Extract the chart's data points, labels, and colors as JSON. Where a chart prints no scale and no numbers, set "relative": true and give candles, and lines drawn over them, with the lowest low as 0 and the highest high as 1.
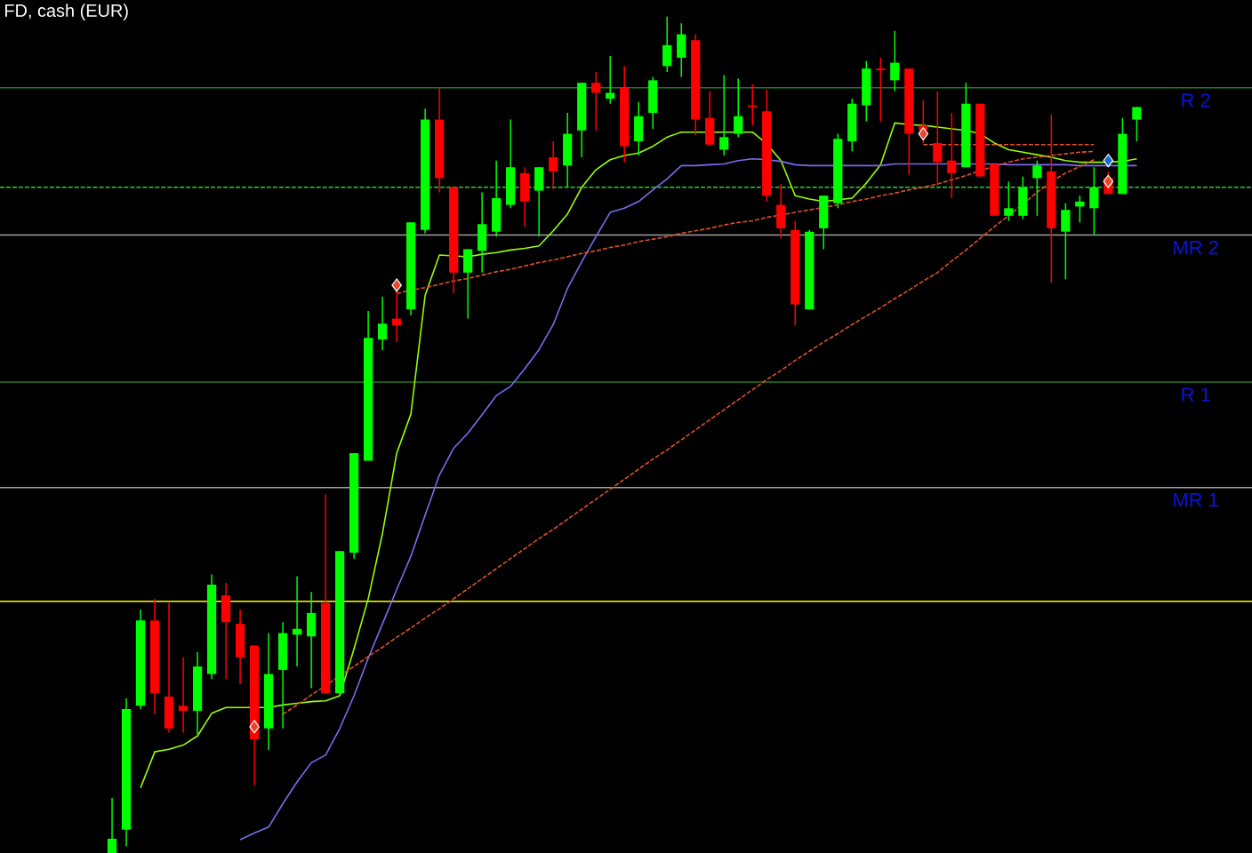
{
  "chart_data": {
    "type": "candlestick",
    "title": "FD, cash (EUR)",
    "relative": true,
    "tick_labels": false,
    "categories": [
      null,
      null,
      null,
      null,
      null,
      null,
      null,
      null,
      null,
      null,
      null,
      null,
      null,
      null,
      null,
      null,
      null,
      null,
      null,
      null,
      null,
      null,
      null,
      null,
      null,
      null,
      null,
      null,
      null,
      null,
      null,
      null,
      null,
      null,
      null,
      null,
      null,
      null,
      null,
      null,
      null,
      null,
      null,
      null,
      null,
      null,
      null,
      null,
      null,
      null,
      null,
      null,
      null,
      null,
      null,
      null,
      null,
      null,
      null,
      null,
      null,
      null,
      null,
      null,
      null,
      null,
      null,
      null,
      null,
      null,
      null,
      null,
      null
    ],
    "ohlc": [
      [
        0,
        0.066,
        0,
        0.017
      ],
      [
        0.028,
        0.185,
        0.008,
        0.172
      ],
      [
        0.176,
        0.291,
        0.172,
        0.278
      ],
      [
        0.278,
        0.304,
        0.166,
        0.191
      ],
      [
        0.187,
        0.299,
        0.144,
        0.149
      ],
      [
        0.176,
        0.234,
        0.144,
        0.17
      ],
      [
        0.17,
        0.24,
        0.142,
        0.223
      ],
      [
        0.214,
        0.333,
        0.208,
        0.321
      ],
      [
        0.308,
        0.323,
        0.208,
        0.276
      ],
      [
        0.274,
        0.291,
        0.202,
        0.234
      ],
      [
        0.248,
        0.248,
        0.081,
        0.136
      ],
      [
        0.149,
        0.263,
        0.123,
        0.214
      ],
      [
        0.219,
        0.276,
        0.149,
        0.263
      ],
      [
        0.261,
        0.331,
        0.223,
        0.268
      ],
      [
        0.259,
        0.312,
        0.197,
        0.287
      ],
      [
        0.299,
        0.429,
        0.191,
        0.191
      ],
      [
        0.191,
        0.361,
        0.191,
        0.361
      ],
      [
        0.359,
        0.478,
        0.352,
        0.478
      ],
      [
        0.469,
        0.648,
        0.469,
        0.616
      ],
      [
        0.614,
        0.665,
        0.601,
        0.633
      ],
      [
        0.639,
        0.673,
        0.611,
        0.631
      ],
      [
        0.65,
        0.754,
        0.643,
        0.754
      ],
      [
        0.745,
        0.89,
        0.741,
        0.877
      ],
      [
        0.877,
        0.915,
        0.79,
        0.807
      ],
      [
        0.796,
        0.796,
        0.669,
        0.694
      ],
      [
        0.694,
        0.722,
        0.639,
        0.722
      ],
      [
        0.72,
        0.79,
        0.694,
        0.752
      ],
      [
        0.743,
        0.828,
        0.737,
        0.783
      ],
      [
        0.775,
        0.877,
        0.771,
        0.82
      ],
      [
        0.813,
        0.82,
        0.749,
        0.779
      ],
      [
        0.792,
        0.82,
        0.737,
        0.82
      ],
      [
        0.832,
        0.851,
        0.794,
        0.815
      ],
      [
        0.822,
        0.885,
        0.796,
        0.86
      ],
      [
        0.864,
        0.921,
        0.832,
        0.921
      ],
      [
        0.921,
        0.934,
        0.864,
        0.909
      ],
      [
        0.902,
        0.953,
        0.896,
        0.909
      ],
      [
        0.915,
        0.941,
        0.826,
        0.845
      ],
      [
        0.851,
        0.898,
        0.834,
        0.881
      ],
      [
        0.885,
        0.928,
        0.866,
        0.924
      ],
      [
        0.941,
        1.0,
        0.934,
        0.966
      ],
      [
        0.951,
        0.992,
        0.928,
        0.979
      ],
      [
        0.972,
        0.979,
        0.858,
        0.877
      ],
      [
        0.879,
        0.911,
        0.847,
        0.847
      ],
      [
        0.841,
        0.93,
        0.834,
        0.856
      ],
      [
        0.86,
        0.926,
        0.856,
        0.881
      ],
      [
        0.894,
        0.919,
        0.87,
        0.892
      ],
      [
        0.887,
        0.913,
        0.779,
        0.786
      ],
      [
        0.775,
        0.8,
        0.735,
        0.747
      ],
      [
        0.745,
        0.756,
        0.631,
        0.656
      ],
      [
        0.65,
        0.745,
        0.65,
        0.743
      ],
      [
        0.747,
        0.786,
        0.722,
        0.786
      ],
      [
        0.777,
        0.86,
        0.771,
        0.854
      ],
      [
        0.851,
        0.902,
        0.839,
        0.896
      ],
      [
        0.894,
        0.947,
        0.875,
        0.938
      ],
      [
        0.938,
        0.951,
        0.875,
        0.936
      ],
      [
        0.924,
        0.983,
        0.911,
        0.945
      ],
      [
        0.938,
        0.938,
        0.811,
        0.86
      ],
      [
        0.87,
        0.9,
        0.849,
        0.864
      ],
      [
        0.849,
        0.911,
        0.798,
        0.826
      ],
      [
        0.828,
        0.885,
        0.783,
        0.813
      ],
      [
        0.82,
        0.921,
        0.82,
        0.896
      ],
      [
        0.896,
        0.896,
        0.809,
        0.809
      ],
      [
        0.824,
        0.824,
        0.762,
        0.762
      ],
      [
        0.762,
        0.803,
        0.756,
        0.771
      ],
      [
        0.762,
        0.809,
        0.758,
        0.796
      ],
      [
        0.807,
        0.828,
        0.762,
        0.822
      ],
      [
        0.815,
        0.883,
        0.682,
        0.747
      ],
      [
        0.743,
        0.777,
        0.686,
        0.769
      ],
      [
        0.773,
        0.786,
        0.754,
        0.779
      ],
      [
        0.771,
        0.82,
        0.739,
        0.796
      ],
      [
        0.807,
        0.815,
        0.788,
        0.788
      ],
      [
        0.788,
        0.879,
        0.788,
        0.86
      ],
      [
        0.877,
        0.892,
        0.851,
        0.892
      ]
    ],
    "series": [
      {
        "type": "line",
        "color": "#99ff00",
        "marker": "none",
        "line_style": "solid",
        "values": [
          null,
          null,
          0.078,
          0.121,
          0.124,
          0.129,
          0.14,
          0.167,
          0.174,
          0.174,
          0.174,
          0.174,
          0.177,
          0.179,
          0.181,
          0.182,
          0.188,
          0.244,
          0.304,
          0.382,
          0.478,
          0.525,
          0.667,
          0.715,
          0.714,
          0.713,
          0.716,
          0.718,
          0.721,
          0.723,
          0.726,
          0.744,
          0.764,
          0.796,
          0.817,
          0.829,
          0.834,
          0.837,
          0.845,
          0.856,
          0.862,
          0.862,
          0.862,
          0.862,
          0.862,
          0.862,
          0.848,
          0.828,
          0.786,
          0.782,
          0.779,
          0.781,
          0.783,
          0.801,
          0.823,
          0.873,
          0.871,
          0.87,
          0.868,
          0.866,
          0.864,
          0.86,
          0.849,
          0.841,
          0.838,
          0.835,
          0.832,
          0.828,
          0.826,
          0.826,
          0.826,
          0.827,
          0.83
        ]
      },
      {
        "type": "line",
        "color": "#7b6cf0",
        "marker": "none",
        "line_style": "solid",
        "values": [
          null,
          null,
          null,
          null,
          null,
          null,
          null,
          null,
          null,
          0.016,
          0.024,
          0.031,
          0.059,
          0.085,
          0.108,
          0.117,
          0.149,
          0.188,
          0.233,
          0.274,
          0.315,
          0.355,
          0.404,
          0.452,
          0.484,
          0.502,
          0.524,
          0.547,
          0.558,
          0.579,
          0.602,
          0.632,
          0.675,
          0.707,
          0.737,
          0.766,
          0.771,
          0.779,
          0.793,
          0.806,
          0.822,
          0.822,
          0.823,
          0.824,
          0.828,
          0.83,
          0.829,
          0.827,
          0.823,
          0.822,
          0.822,
          0.822,
          0.822,
          0.822,
          0.822,
          0.824,
          0.824,
          0.824,
          0.824,
          0.824,
          0.824,
          0.824,
          0.824,
          0.823,
          0.823,
          0.823,
          0.823,
          0.823,
          0.822,
          0.822,
          0.822,
          0.822,
          0.822
        ]
      },
      {
        "type": "line",
        "color": "#e0502a",
        "marker": "none",
        "line_style": "dashed",
        "values": [
          null,
          null,
          null,
          null,
          null,
          null,
          null,
          null,
          null,
          null,
          null,
          null,
          0.166,
          0.177,
          0.189,
          0.2,
          0.212,
          0.223,
          0.235,
          0.246,
          0.258,
          0.269,
          0.281,
          0.292,
          0.304,
          0.316,
          0.328,
          0.34,
          0.352,
          0.364,
          0.376,
          0.387,
          0.399,
          0.411,
          0.423,
          0.435,
          0.447,
          0.459,
          0.471,
          0.482,
          0.494,
          0.506,
          0.518,
          0.53,
          0.542,
          0.554,
          0.566,
          0.577,
          0.589,
          0.6,
          0.611,
          0.621,
          0.632,
          0.642,
          0.652,
          0.663,
          0.673,
          0.684,
          0.694,
          0.708,
          0.721,
          0.735,
          0.749,
          0.762,
          0.776,
          0.79,
          0.803,
          0.813,
          0.821,
          0.829,
          null,
          null,
          null
        ]
      },
      {
        "type": "line",
        "color": "#e0502a",
        "marker": "none",
        "line_style": "dashed",
        "values": [
          null,
          null,
          null,
          null,
          null,
          null,
          null,
          null,
          null,
          null,
          null,
          null,
          null,
          null,
          null,
          null,
          null,
          null,
          null,
          null,
          0.669,
          0.673,
          0.676,
          0.68,
          0.684,
          0.687,
          0.691,
          0.695,
          0.698,
          0.702,
          0.706,
          0.709,
          0.713,
          0.717,
          0.72,
          0.724,
          0.727,
          0.731,
          0.734,
          0.737,
          0.741,
          0.744,
          0.747,
          0.751,
          0.754,
          0.756,
          0.76,
          0.763,
          0.766,
          0.769,
          0.772,
          0.775,
          0.779,
          0.782,
          0.786,
          0.789,
          0.793,
          0.796,
          0.8,
          0.805,
          0.81,
          0.816,
          0.821,
          0.826,
          0.83,
          0.832,
          0.834,
          0.836,
          0.838,
          0.839,
          null,
          null,
          null
        ]
      },
      {
        "type": "line",
        "color": "#e0502a",
        "marker": "none",
        "line_style": "dashed",
        "values": [
          null,
          null,
          null,
          null,
          null,
          null,
          null,
          null,
          null,
          null,
          null,
          null,
          null,
          null,
          null,
          null,
          null,
          null,
          null,
          null,
          null,
          null,
          null,
          null,
          null,
          null,
          null,
          null,
          null,
          null,
          null,
          null,
          null,
          null,
          null,
          null,
          null,
          null,
          null,
          null,
          null,
          null,
          null,
          null,
          null,
          null,
          null,
          null,
          null,
          null,
          null,
          null,
          null,
          null,
          null,
          null,
          null,
          0.847,
          0.847,
          0.847,
          0.847,
          0.847,
          0.847,
          0.847,
          0.847,
          0.847,
          0.847,
          0.847,
          0.847,
          0.847,
          null,
          null,
          null
        ]
      },
      {
        "type": "scatter",
        "color": "#e8452a",
        "marker": "diamond",
        "values": [
          null,
          null,
          null,
          null,
          null,
          null,
          null,
          null,
          null,
          null,
          0.151,
          null,
          null,
          null,
          null,
          null,
          null,
          null,
          null,
          null,
          0.679,
          null,
          null,
          null,
          null,
          null,
          null,
          null,
          null,
          null,
          null,
          null,
          null,
          null,
          null,
          null,
          null,
          null,
          null,
          null,
          null,
          null,
          null,
          null,
          null,
          null,
          null,
          null,
          null,
          null,
          null,
          null,
          null,
          null,
          null,
          null,
          null,
          0.86,
          null,
          null,
          null,
          null,
          null,
          null,
          null,
          null,
          null,
          null,
          null,
          null,
          0.803,
          null,
          null
        ]
      },
      {
        "type": "scatter",
        "color": "#1a6ad0",
        "marker": "diamond",
        "values": [
          null,
          null,
          null,
          null,
          null,
          null,
          null,
          null,
          null,
          null,
          null,
          null,
          null,
          null,
          null,
          null,
          null,
          null,
          null,
          null,
          null,
          null,
          null,
          null,
          null,
          null,
          null,
          null,
          null,
          null,
          null,
          null,
          null,
          null,
          null,
          null,
          null,
          null,
          null,
          null,
          null,
          null,
          null,
          null,
          null,
          null,
          null,
          null,
          null,
          null,
          null,
          null,
          null,
          null,
          null,
          null,
          null,
          null,
          null,
          null,
          null,
          null,
          null,
          null,
          null,
          null,
          null,
          null,
          null,
          null,
          0.828,
          null,
          null
        ]
      }
    ],
    "ref_lines": [
      {
        "axis": "y",
        "value": 0.915,
        "label": "R 2",
        "color": "#1f7a1f",
        "line_style": "solid"
      },
      {
        "axis": "y",
        "value": 0.796,
        "color": "#33cc33",
        "line_style": "dashed"
      },
      {
        "axis": "y",
        "value": 0.739,
        "label": "MR 2",
        "color": "#a0a0a0",
        "line_style": "solid"
      },
      {
        "axis": "y",
        "value": 0.563,
        "label": "R 1",
        "color": "#1f7a1f",
        "line_style": "solid"
      },
      {
        "axis": "y",
        "value": 0.437,
        "label": "MR 1",
        "color": "#a0a0a0",
        "line_style": "solid"
      },
      {
        "axis": "y",
        "value": 0.301,
        "color": "#ffff00",
        "line_style": "solid"
      }
    ]
  }
}
